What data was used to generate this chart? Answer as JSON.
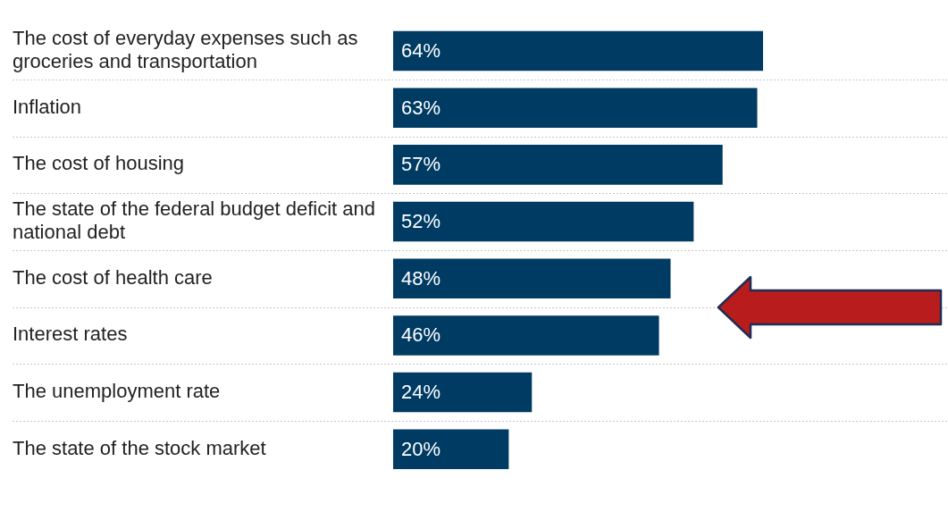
{
  "chart_data": {
    "type": "bar",
    "orientation": "horizontal",
    "categories": [
      "The cost of everyday expenses such as groceries and transportation",
      "Inflation",
      "The cost of housing",
      "The state of the federal budget deficit and national debt",
      "The cost of health care",
      "Interest rates",
      "The unemployment rate",
      "The state of the stock market"
    ],
    "values": [
      64,
      63,
      57,
      52,
      48,
      46,
      24,
      20
    ],
    "value_labels": [
      "64%",
      "63%",
      "57%",
      "52%",
      "48%",
      "46%",
      "24%",
      "20%"
    ],
    "color": "#003b64",
    "grid": true,
    "legend": false
  }
}
